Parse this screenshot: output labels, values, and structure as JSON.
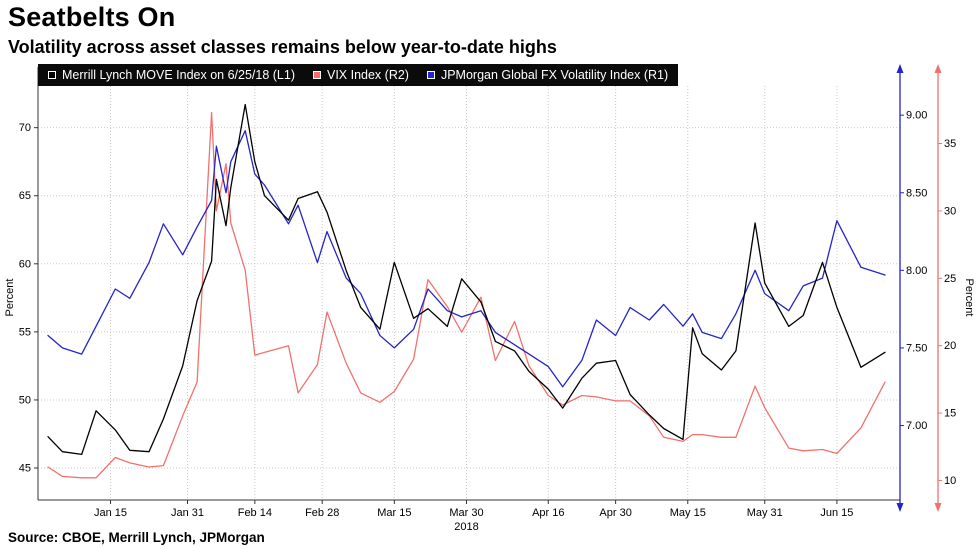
{
  "header": {
    "title": "Seatbelts On",
    "subtitle": "Volatility across asset classes remains below year-to-date highs"
  },
  "footer": {
    "source": "Source: CBOE, Merrill Lynch, JPMorgan"
  },
  "chart_data": {
    "type": "line",
    "title": "Seatbelts On",
    "subtitle": "Volatility across asset classes remains below year-to-date highs",
    "grid": true,
    "legend_position": "top",
    "x_year_label": "2018",
    "x_ticks": [
      "Jan 15",
      "Jan 31",
      "Feb 14",
      "Feb 28",
      "Mar 15",
      "Mar 30",
      "Apr 16",
      "Apr 30",
      "May 15",
      "May 31",
      "Jun 15"
    ],
    "x": [
      "Jan 2",
      "Jan 5",
      "Jan 9",
      "Jan 12",
      "Jan 16",
      "Jan 19",
      "Jan 23",
      "Jan 26",
      "Jan 30",
      "Feb 2",
      "Feb 5",
      "Feb 6",
      "Feb 8",
      "Feb 9",
      "Feb 12",
      "Feb 14",
      "Feb 16",
      "Feb 21",
      "Feb 23",
      "Feb 27",
      "Mar 1",
      "Mar 5",
      "Mar 8",
      "Mar 12",
      "Mar 15",
      "Mar 19",
      "Mar 22",
      "Mar 26",
      "Mar 29",
      "Apr 2",
      "Apr 5",
      "Apr 9",
      "Apr 12",
      "Apr 16",
      "Apr 19",
      "Apr 23",
      "Apr 26",
      "Apr 30",
      "May 3",
      "May 7",
      "May 10",
      "May 14",
      "May 16",
      "May 18",
      "May 22",
      "May 25",
      "May 29",
      "May 31",
      "Jun 5",
      "Jun 8",
      "Jun 12",
      "Jun 15",
      "Jun 20",
      "Jun 25"
    ],
    "axes": {
      "left": {
        "label": "Percent",
        "ticks": [
          "45",
          "50",
          "55",
          "60",
          "65",
          "70"
        ],
        "min": 42.65,
        "max": 72.4
      },
      "right1": {
        "label": "",
        "ticks": [
          "7.00",
          "7.50",
          "8.00",
          "8.50",
          "9.00"
        ],
        "min": 6.52,
        "max": 9.13
      },
      "right2": {
        "label": "Percent",
        "ticks": [
          "10",
          "15",
          "20",
          "25",
          "30",
          "35"
        ],
        "min": 8.55,
        "max": 38.6
      }
    },
    "series": [
      {
        "name": "Merrill Lynch MOVE Index on 6/25/18 (L1)",
        "axis": "left",
        "color": "#000000",
        "values": [
          47.3,
          46.2,
          46.0,
          49.2,
          47.8,
          46.3,
          46.2,
          48.6,
          52.5,
          57.3,
          60.2,
          66.2,
          62.8,
          65.6,
          71.7,
          67.5,
          65.0,
          63.2,
          64.8,
          65.3,
          63.8,
          59.5,
          56.8,
          55.2,
          60.1,
          56.0,
          56.7,
          55.4,
          58.9,
          57.2,
          54.3,
          53.6,
          52.1,
          50.8,
          49.4,
          51.6,
          52.7,
          52.9,
          50.4,
          48.9,
          47.9,
          47.1,
          55.3,
          53.4,
          52.2,
          53.6,
          63.0,
          58.6,
          55.4,
          56.2,
          60.1,
          56.8,
          52.4,
          53.5
        ]
      },
      {
        "name": "VIX Index (R2)",
        "axis": "right2",
        "color": "#f2716d",
        "values": [
          11.0,
          10.3,
          10.2,
          10.2,
          11.7,
          11.3,
          11.0,
          11.1,
          14.8,
          17.3,
          37.3,
          30.0,
          33.5,
          29.1,
          25.6,
          19.3,
          19.5,
          20.0,
          16.5,
          18.6,
          22.5,
          18.7,
          16.5,
          15.8,
          16.6,
          19.0,
          24.9,
          22.9,
          21.0,
          23.6,
          18.9,
          21.8,
          18.5,
          16.3,
          15.6,
          16.3,
          16.2,
          15.9,
          15.9,
          14.8,
          13.2,
          12.9,
          13.4,
          13.4,
          13.2,
          13.2,
          17.0,
          15.4,
          12.4,
          12.2,
          12.3,
          12.0,
          13.9,
          17.3
        ]
      },
      {
        "name": "JPMorgan Global FX Volatility Index (R1)",
        "axis": "right1",
        "color": "#2424cc",
        "values": [
          7.58,
          7.5,
          7.46,
          7.64,
          7.88,
          7.82,
          8.05,
          8.3,
          8.1,
          8.28,
          8.45,
          8.8,
          8.5,
          8.7,
          8.9,
          8.62,
          8.55,
          8.3,
          8.42,
          8.05,
          8.25,
          7.95,
          7.85,
          7.58,
          7.5,
          7.62,
          7.88,
          7.74,
          7.7,
          7.74,
          7.6,
          7.52,
          7.46,
          7.38,
          7.25,
          7.42,
          7.68,
          7.58,
          7.76,
          7.68,
          7.78,
          7.64,
          7.72,
          7.6,
          7.56,
          7.72,
          8.0,
          7.85,
          7.74,
          7.9,
          7.95,
          8.32,
          8.02,
          7.97
        ]
      }
    ],
    "source": "Source: CBOE, Merrill Lynch, JPMorgan"
  }
}
